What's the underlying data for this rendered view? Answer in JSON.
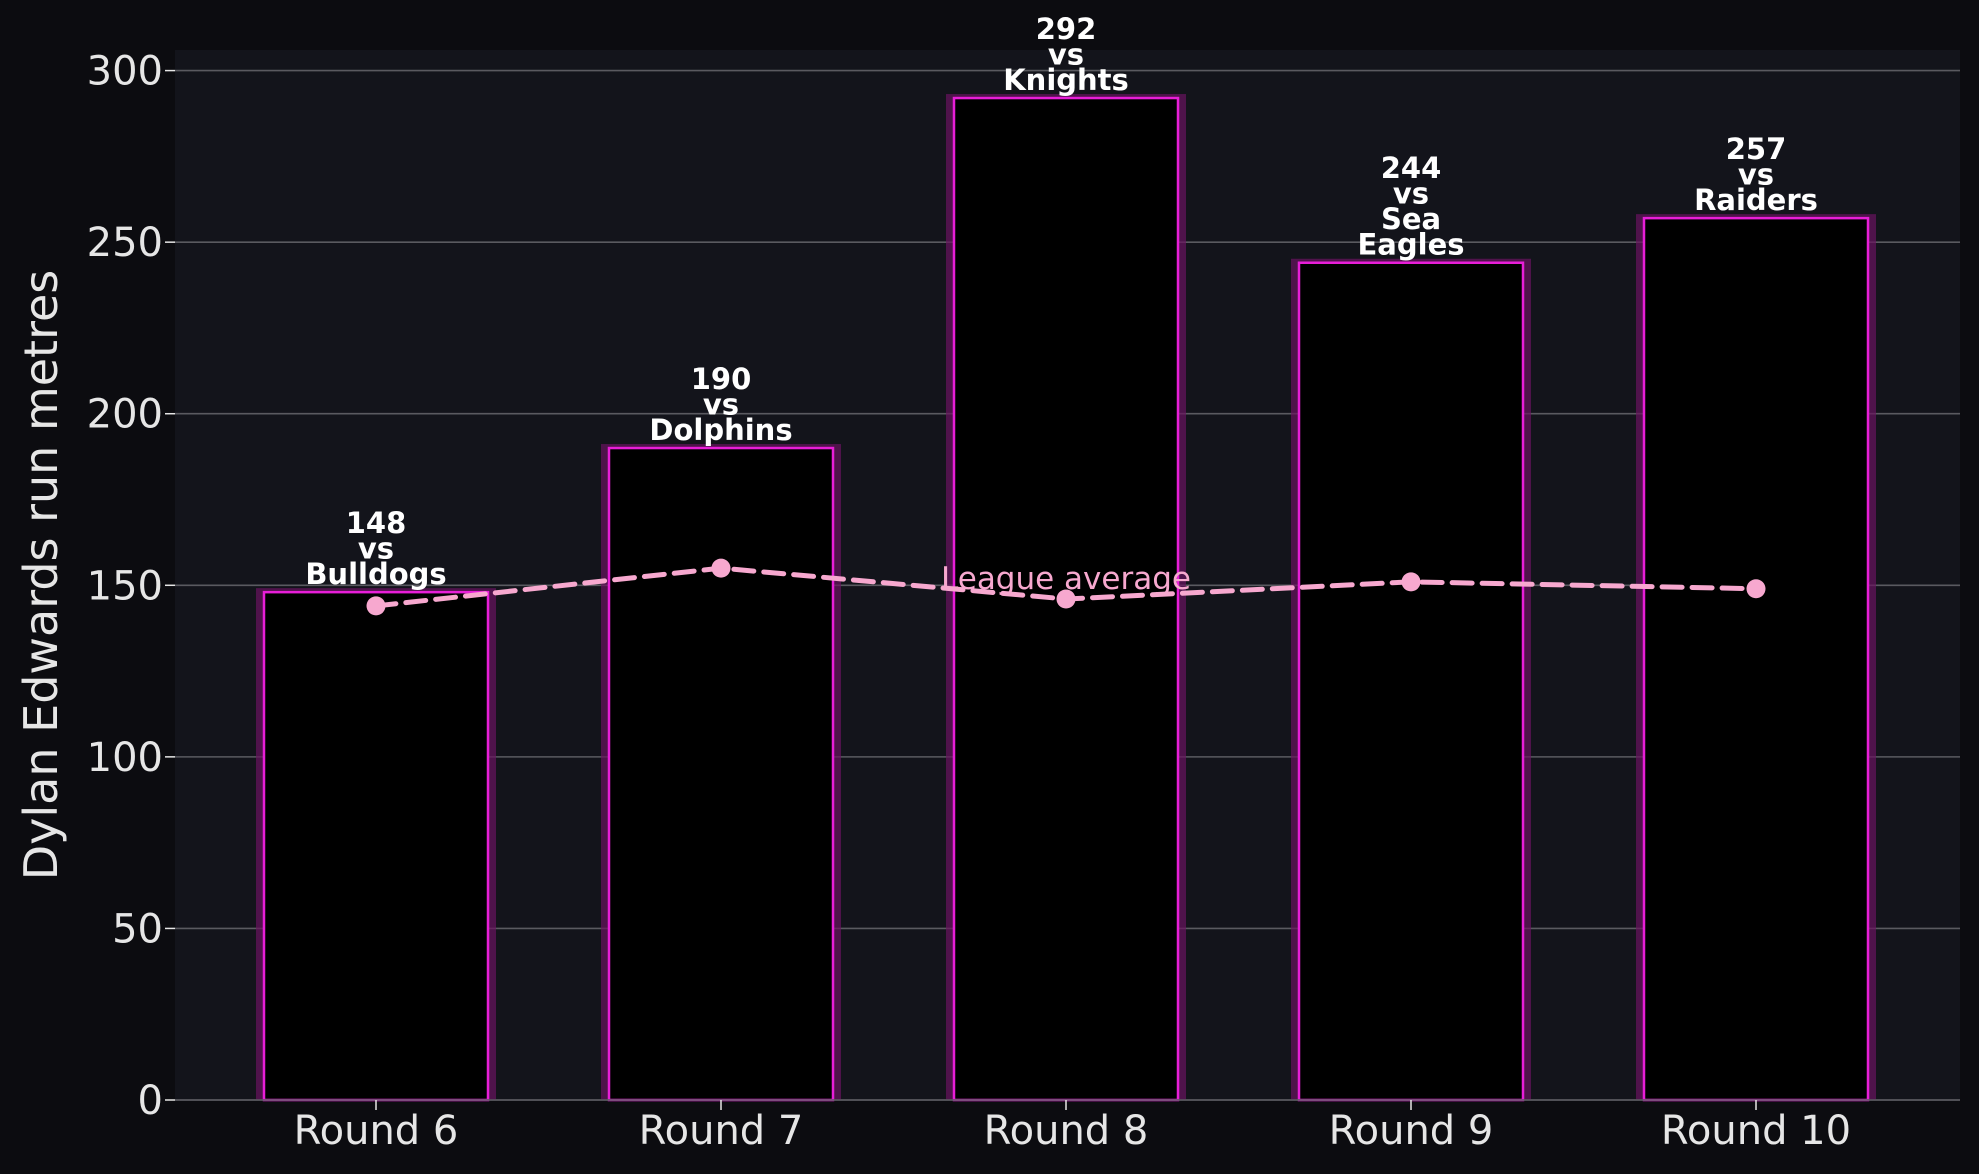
{
  "chart_data": {
    "type": "bar",
    "categories": [
      "Round 6",
      "Round 7",
      "Round 8",
      "Round 9",
      "Round 10"
    ],
    "values": [
      148,
      190,
      292,
      244,
      257
    ],
    "bar_labels": [
      [
        "148",
        "vs",
        "Bulldogs"
      ],
      [
        "190",
        "vs",
        "Dolphins"
      ],
      [
        "292",
        "vs",
        "Knights"
      ],
      [
        "244",
        "vs",
        "Sea",
        "Eagles"
      ],
      [
        "257",
        "vs",
        "Raiders"
      ]
    ],
    "series": [
      {
        "name": "Dylan Edwards run metres",
        "type": "bar",
        "values": [
          148,
          190,
          292,
          244,
          257
        ]
      },
      {
        "name": "League average",
        "type": "line",
        "values": [
          144,
          155,
          146,
          151,
          149
        ]
      }
    ],
    "line_label": "League average",
    "title": "",
    "xlabel": "",
    "ylabel": "Dylan Edwards run metres",
    "ylim": [
      0,
      306
    ],
    "yticks": [
      0,
      50,
      100,
      150,
      200,
      250,
      300
    ],
    "grid": "horizontal",
    "colors": {
      "page_background": "#0c0c10",
      "plot_background": "#13141b",
      "bar_fill": "#000000",
      "bar_edge": "#e81ed8",
      "bar_glow": "#6a1260",
      "average_line": "#f7a8cf",
      "grid": "#5a5a60",
      "text": "#e6e6e6"
    }
  }
}
